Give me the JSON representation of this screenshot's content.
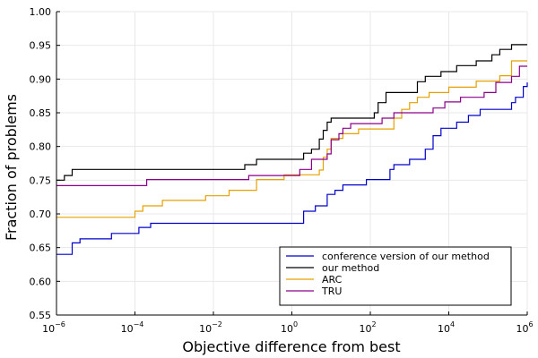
{
  "chart_data": {
    "type": "line",
    "step": true,
    "xscale": "log10",
    "xlabel": "Objective difference from best",
    "ylabel": "Fraction of problems",
    "xlim": [
      1e-06,
      1000000.0
    ],
    "ylim": [
      0.55,
      1.0
    ],
    "xticks": [
      {
        "value": 1e-06,
        "base": "10",
        "exp": "−6"
      },
      {
        "value": 0.0001,
        "base": "10",
        "exp": "−4"
      },
      {
        "value": 0.01,
        "base": "10",
        "exp": "−2"
      },
      {
        "value": 1,
        "base": "10",
        "exp": "0"
      },
      {
        "value": 100,
        "base": "10",
        "exp": "2"
      },
      {
        "value": 10000,
        "base": "10",
        "exp": "4"
      },
      {
        "value": 1000000,
        "base": "10",
        "exp": "6"
      }
    ],
    "yticks": [
      "0.55",
      "0.60",
      "0.65",
      "0.70",
      "0.75",
      "0.80",
      "0.85",
      "0.90",
      "0.95",
      "1.00"
    ],
    "grid": true,
    "legend_position": "bottom-right",
    "series": [
      {
        "name": "conference version of our method",
        "color": "#0000cc",
        "points": [
          [
            -6.0,
            0.64
          ],
          [
            -5.6,
            0.657
          ],
          [
            -5.4,
            0.663
          ],
          [
            -4.6,
            0.671
          ],
          [
            -3.9,
            0.68
          ],
          [
            -3.6,
            0.686
          ],
          [
            0.3,
            0.704
          ],
          [
            0.6,
            0.712
          ],
          [
            0.9,
            0.729
          ],
          [
            1.1,
            0.735
          ],
          [
            1.3,
            0.743
          ],
          [
            1.8,
            0.743
          ],
          [
            1.9,
            0.751
          ],
          [
            2.5,
            0.766
          ],
          [
            2.6,
            0.773
          ],
          [
            3.0,
            0.781
          ],
          [
            3.4,
            0.796
          ],
          [
            3.6,
            0.816
          ],
          [
            3.8,
            0.827
          ],
          [
            4.2,
            0.836
          ],
          [
            4.5,
            0.846
          ],
          [
            4.8,
            0.855
          ],
          [
            5.6,
            0.865
          ],
          [
            5.7,
            0.873
          ],
          [
            5.9,
            0.889
          ],
          [
            6.0,
            0.895
          ]
        ]
      },
      {
        "name": "our method",
        "color": "#000000",
        "points": [
          [
            -6.0,
            0.75
          ],
          [
            -5.8,
            0.757
          ],
          [
            -5.6,
            0.766
          ],
          [
            -3.8,
            0.766
          ],
          [
            -1.2,
            0.773
          ],
          [
            -0.9,
            0.781
          ],
          [
            0.1,
            0.781
          ],
          [
            0.3,
            0.79
          ],
          [
            0.5,
            0.796
          ],
          [
            0.7,
            0.811
          ],
          [
            0.8,
            0.824
          ],
          [
            0.9,
            0.836
          ],
          [
            1.0,
            0.842
          ],
          [
            2.1,
            0.85
          ],
          [
            2.2,
            0.865
          ],
          [
            2.4,
            0.88
          ],
          [
            3.2,
            0.896
          ],
          [
            3.4,
            0.904
          ],
          [
            3.8,
            0.911
          ],
          [
            4.2,
            0.92
          ],
          [
            4.7,
            0.927
          ],
          [
            5.1,
            0.936
          ],
          [
            5.3,
            0.944
          ],
          [
            5.6,
            0.951
          ],
          [
            6.0,
            0.951
          ]
        ]
      },
      {
        "name": "ARC",
        "color": "#e6a100",
        "points": [
          [
            -6.0,
            0.695
          ],
          [
            -4.1,
            0.695
          ],
          [
            -4.0,
            0.704
          ],
          [
            -3.8,
            0.712
          ],
          [
            -3.3,
            0.72
          ],
          [
            -2.2,
            0.727
          ],
          [
            -1.6,
            0.735
          ],
          [
            -0.9,
            0.751
          ],
          [
            -0.2,
            0.758
          ],
          [
            0.7,
            0.765
          ],
          [
            0.8,
            0.784
          ],
          [
            0.9,
            0.796
          ],
          [
            1.0,
            0.812
          ],
          [
            1.3,
            0.819
          ],
          [
            1.7,
            0.826
          ],
          [
            2.6,
            0.842
          ],
          [
            2.8,
            0.855
          ],
          [
            3.0,
            0.865
          ],
          [
            3.2,
            0.873
          ],
          [
            3.5,
            0.88
          ],
          [
            4.0,
            0.888
          ],
          [
            4.7,
            0.897
          ],
          [
            5.3,
            0.905
          ],
          [
            5.6,
            0.927
          ],
          [
            6.0,
            0.927
          ]
        ]
      },
      {
        "name": "TRU",
        "color": "#8b008b",
        "points": [
          [
            -6.0,
            0.742
          ],
          [
            -4.3,
            0.742
          ],
          [
            -3.7,
            0.751
          ],
          [
            -1.1,
            0.757
          ],
          [
            0.2,
            0.766
          ],
          [
            0.5,
            0.781
          ],
          [
            0.9,
            0.789
          ],
          [
            1.0,
            0.81
          ],
          [
            1.2,
            0.819
          ],
          [
            1.3,
            0.827
          ],
          [
            1.5,
            0.834
          ],
          [
            2.3,
            0.842
          ],
          [
            2.6,
            0.85
          ],
          [
            3.6,
            0.857
          ],
          [
            3.9,
            0.866
          ],
          [
            4.3,
            0.873
          ],
          [
            4.9,
            0.88
          ],
          [
            5.2,
            0.895
          ],
          [
            5.6,
            0.904
          ],
          [
            5.8,
            0.919
          ],
          [
            6.0,
            0.919
          ]
        ]
      }
    ]
  }
}
